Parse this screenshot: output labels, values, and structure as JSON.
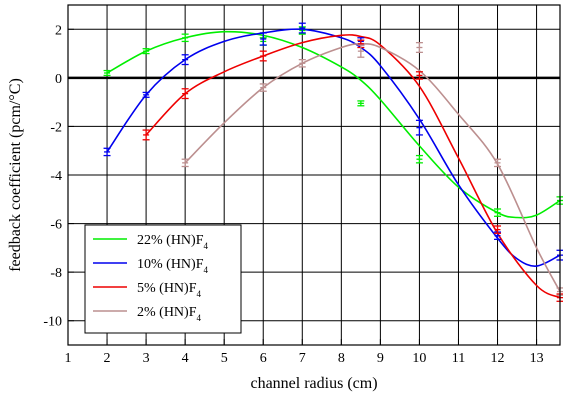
{
  "chart_data": {
    "type": "line",
    "title": "",
    "xlabel": "channel radius (cm)",
    "ylabel": "feedback coefficient (pcm/°C)",
    "xlim": [
      1,
      13.6
    ],
    "ylim": [
      -11,
      3
    ],
    "x_ticks": [
      1,
      2,
      3,
      4,
      5,
      6,
      7,
      8,
      9,
      10,
      11,
      12,
      13
    ],
    "x_tick_labels": [
      "1",
      "2",
      "3",
      "4",
      "5",
      "6",
      "7",
      "8",
      "9",
      "10",
      "11",
      "12",
      "13"
    ],
    "y_ticks": [
      -10,
      -8,
      -6,
      -4,
      -2,
      0,
      2
    ],
    "y_tick_labels": [
      "-10",
      "-8",
      "-6",
      "-4",
      "-2",
      "0",
      "2"
    ],
    "grid": true,
    "zero_line": true,
    "legend_position": "bottom-left",
    "series": [
      {
        "name": "22% (HN)F",
        "name_sub": "4",
        "color": "#00ee00",
        "points": {
          "x": [
            2,
            3,
            4,
            6,
            7,
            8.5,
            10,
            12,
            13.6
          ],
          "y": [
            0.2,
            1.1,
            1.65,
            1.5,
            1.95,
            -1.05,
            -3.35,
            -5.55,
            -5.05
          ],
          "err": [
            0.1,
            0.1,
            0.15,
            0.15,
            0.15,
            0.1,
            0.15,
            0.15,
            0.15
          ]
        },
        "curve": {
          "x": [
            2,
            3,
            4,
            5,
            6,
            7,
            8,
            8.5,
            9,
            10,
            11,
            12,
            12.5,
            13,
            13.6
          ],
          "y": [
            0.2,
            1.1,
            1.65,
            1.9,
            1.75,
            1.25,
            0.45,
            -0.1,
            -0.9,
            -2.8,
            -4.5,
            -5.55,
            -5.75,
            -5.65,
            -5.05
          ]
        }
      },
      {
        "name": "10% (HN)F",
        "name_sub": "4",
        "color": "#0000ee",
        "points": {
          "x": [
            2,
            3,
            4,
            6,
            7,
            8.5,
            10,
            12,
            13.6
          ],
          "y": [
            -3.05,
            -0.7,
            0.75,
            1.6,
            2.05,
            1.5,
            -2.05,
            -6.5,
            -7.3
          ],
          "err": [
            0.15,
            0.1,
            0.2,
            0.25,
            0.2,
            0.15,
            0.3,
            0.15,
            0.2
          ]
        },
        "curve": {
          "x": [
            2,
            3,
            4,
            5,
            6,
            7,
            8,
            8.5,
            9,
            10,
            11,
            12,
            12.5,
            13,
            13.6
          ],
          "y": [
            -3.05,
            -0.7,
            0.75,
            1.5,
            1.85,
            2.0,
            1.65,
            1.25,
            0.5,
            -1.7,
            -4.4,
            -6.6,
            -7.45,
            -7.75,
            -7.3
          ]
        }
      },
      {
        "name": "5% (HN)F",
        "name_sub": "4",
        "color": "#ee0000",
        "points": {
          "x": [
            3,
            4,
            6,
            8.5,
            10,
            12,
            13.6
          ],
          "y": [
            -2.35,
            -0.65,
            0.9,
            1.4,
            0.1,
            -6.25,
            -9.05
          ],
          "err": [
            0.2,
            0.2,
            0.2,
            0.15,
            0.15,
            0.15,
            0.15
          ]
        },
        "curve": {
          "x": [
            3,
            4,
            5,
            6,
            7,
            8,
            8.5,
            9,
            10,
            11,
            12,
            13,
            13.6
          ],
          "y": [
            -2.35,
            -0.65,
            0.25,
            0.9,
            1.45,
            1.75,
            1.7,
            1.35,
            -0.35,
            -3.3,
            -6.4,
            -8.55,
            -9.05
          ]
        }
      },
      {
        "name": "2% (HN)F",
        "name_sub": "4",
        "color": "#bc8f8f",
        "points": {
          "x": [
            4,
            6,
            7,
            8.5,
            10,
            12,
            13.6
          ],
          "y": [
            -3.5,
            -0.4,
            0.6,
            1.1,
            1.25,
            -3.5,
            -8.8
          ],
          "err": [
            0.15,
            0.15,
            0.15,
            0.25,
            0.2,
            0.15,
            0.15
          ]
        },
        "curve": {
          "x": [
            4,
            5,
            6,
            7,
            8,
            8.5,
            9,
            10,
            11,
            12,
            13,
            13.6
          ],
          "y": [
            -3.5,
            -1.85,
            -0.4,
            0.6,
            1.25,
            1.4,
            1.25,
            0.3,
            -1.5,
            -3.55,
            -7.0,
            -8.8
          ]
        }
      }
    ]
  }
}
